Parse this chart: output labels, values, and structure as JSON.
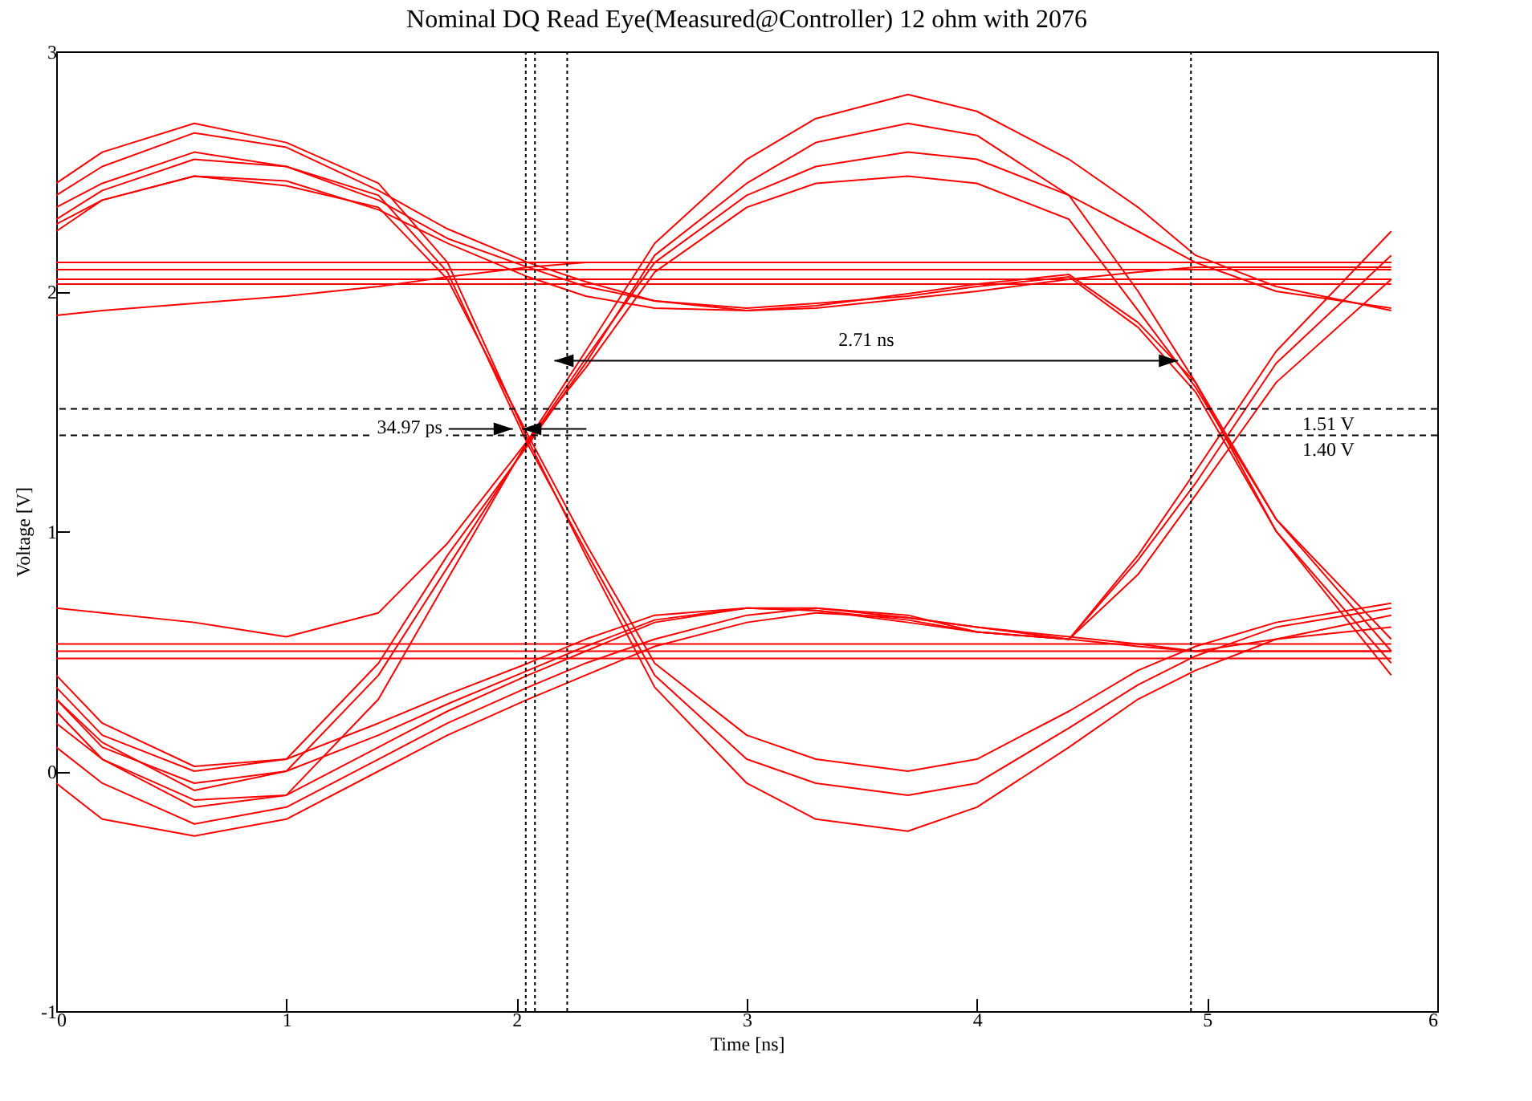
{
  "chart_data": {
    "type": "line",
    "title": "Nominal DQ Read Eye(Measured@Controller) 12 ohm with 2076",
    "xlabel": "Time [ns]",
    "ylabel": "Voltage [V]",
    "xlim": [
      0,
      6
    ],
    "xticks": [
      0,
      1,
      2,
      3,
      4,
      5,
      6
    ],
    "ylim": [
      -1,
      3
    ],
    "yticks": [
      -1,
      0,
      1,
      2,
      3
    ],
    "grid": false,
    "x": [
      0,
      0.2,
      0.6,
      1.0,
      1.4,
      1.7,
      2.05,
      2.3,
      2.6,
      3.0,
      3.3,
      3.7,
      4.0,
      4.4,
      4.7,
      4.95,
      5.3,
      5.8
    ],
    "series": [
      {
        "color": "#ff0000",
        "values": [
          2.45,
          2.58,
          2.7,
          2.62,
          2.45,
          2.12,
          1.38,
          0.9,
          0.35,
          -0.05,
          -0.2,
          -0.25,
          -0.15,
          0.1,
          0.3,
          0.42,
          0.55,
          0.65
        ]
      },
      {
        "color": "#ff0000",
        "values": [
          2.35,
          2.45,
          2.58,
          2.52,
          2.4,
          2.08,
          1.36,
          0.92,
          0.4,
          0.05,
          -0.05,
          -0.1,
          -0.05,
          0.18,
          0.36,
          0.48,
          0.6,
          0.68
        ]
      },
      {
        "color": "#ff0000",
        "values": [
          2.28,
          2.38,
          2.48,
          2.44,
          2.35,
          2.05,
          1.4,
          0.95,
          0.45,
          0.15,
          0.05,
          0.0,
          0.05,
          0.25,
          0.42,
          0.52,
          0.62,
          0.7
        ]
      },
      {
        "color": "#ff0000",
        "values": [
          2.4,
          2.52,
          2.66,
          2.6,
          2.42,
          2.26,
          2.12,
          2.04,
          1.96,
          1.92,
          1.93,
          1.97,
          2.0,
          2.05,
          2.08,
          2.1,
          2.1,
          2.1
        ]
      },
      {
        "color": "#ff0000",
        "values": [
          2.3,
          2.42,
          2.55,
          2.52,
          2.38,
          2.22,
          2.1,
          2.02,
          1.96,
          1.93,
          1.95,
          1.98,
          2.02,
          2.06,
          1.85,
          1.58,
          1.0,
          0.4
        ]
      },
      {
        "color": "#ff0000",
        "values": [
          2.25,
          2.38,
          2.48,
          2.46,
          2.34,
          2.2,
          2.06,
          1.98,
          1.93,
          1.92,
          1.94,
          1.99,
          2.03,
          2.07,
          1.87,
          1.62,
          1.05,
          0.55
        ]
      },
      {
        "color": "#ff0000",
        "values": [
          2.12,
          2.12,
          2.12,
          2.12,
          2.12,
          2.12,
          2.12,
          2.12,
          2.12,
          2.12,
          2.12,
          2.12,
          2.12,
          2.12,
          2.12,
          2.12,
          2.12,
          2.12
        ]
      },
      {
        "color": "#ff0000",
        "values": [
          2.09,
          2.09,
          2.09,
          2.09,
          2.09,
          2.09,
          2.09,
          2.09,
          2.09,
          2.09,
          2.09,
          2.09,
          2.09,
          2.09,
          2.09,
          2.09,
          2.09,
          2.09
        ]
      },
      {
        "color": "#ff0000",
        "values": [
          2.05,
          2.05,
          2.05,
          2.05,
          2.05,
          2.05,
          2.05,
          2.05,
          2.05,
          2.05,
          2.05,
          2.05,
          2.05,
          2.05,
          2.05,
          2.05,
          2.05,
          2.05
        ]
      },
      {
        "color": "#ff0000",
        "values": [
          2.03,
          2.03,
          2.03,
          2.03,
          2.03,
          2.03,
          2.03,
          2.03,
          2.03,
          2.03,
          2.03,
          2.03,
          2.03,
          2.03,
          2.03,
          2.03,
          2.03,
          2.03
        ]
      },
      {
        "color": "#ff0000",
        "values": [
          1.9,
          1.92,
          1.95,
          1.98,
          2.02,
          2.06,
          2.1,
          2.12,
          2.12,
          2.12,
          2.12,
          2.12,
          2.12,
          2.12,
          2.12,
          2.12,
          2.12,
          2.12
        ]
      },
      {
        "color": "#ff0000",
        "values": [
          0.53,
          0.53,
          0.53,
          0.53,
          0.53,
          0.53,
          0.53,
          0.53,
          0.53,
          0.53,
          0.53,
          0.53,
          0.53,
          0.53,
          0.53,
          0.53,
          0.53,
          0.53
        ]
      },
      {
        "color": "#ff0000",
        "values": [
          0.5,
          0.5,
          0.5,
          0.5,
          0.5,
          0.5,
          0.5,
          0.5,
          0.5,
          0.5,
          0.5,
          0.5,
          0.5,
          0.5,
          0.5,
          0.5,
          0.5,
          0.5
        ]
      },
      {
        "color": "#ff0000",
        "values": [
          0.47,
          0.47,
          0.47,
          0.47,
          0.47,
          0.47,
          0.47,
          0.47,
          0.47,
          0.47,
          0.47,
          0.47,
          0.47,
          0.47,
          0.47,
          0.47,
          0.47,
          0.47
        ]
      },
      {
        "color": "#ff0000",
        "values": [
          0.68,
          0.66,
          0.62,
          0.56,
          0.66,
          0.95,
          1.38,
          1.75,
          2.2,
          2.55,
          2.72,
          2.82,
          2.75,
          2.55,
          2.35,
          2.15,
          2.02,
          1.92
        ]
      },
      {
        "color": "#ff0000",
        "values": [
          0.4,
          0.2,
          0.02,
          0.05,
          0.45,
          0.9,
          1.36,
          1.7,
          2.15,
          2.45,
          2.62,
          2.7,
          2.65,
          2.4,
          2.0,
          1.62,
          1.0,
          0.45
        ]
      },
      {
        "color": "#ff0000",
        "values": [
          0.3,
          0.12,
          -0.08,
          0.0,
          0.4,
          0.85,
          1.37,
          1.72,
          2.12,
          2.4,
          2.52,
          2.58,
          2.55,
          2.4,
          2.25,
          2.12,
          2.0,
          1.93
        ]
      },
      {
        "color": "#ff0000",
        "values": [
          0.25,
          0.05,
          -0.15,
          -0.1,
          0.3,
          0.8,
          1.38,
          1.68,
          2.08,
          2.35,
          2.45,
          2.48,
          2.45,
          2.3,
          1.92,
          1.6,
          1.05,
          0.5
        ]
      },
      {
        "color": "#ff0000",
        "values": [
          0.35,
          0.15,
          0.0,
          0.05,
          0.2,
          0.32,
          0.45,
          0.55,
          0.65,
          0.68,
          0.67,
          0.62,
          0.58,
          0.55,
          0.52,
          0.5,
          0.5,
          0.5
        ]
      },
      {
        "color": "#ff0000",
        "values": [
          0.1,
          -0.05,
          -0.22,
          -0.15,
          0.05,
          0.2,
          0.35,
          0.45,
          0.55,
          0.65,
          0.68,
          0.65,
          0.58,
          0.55,
          0.9,
          1.25,
          1.75,
          2.25
        ]
      },
      {
        "color": "#ff0000",
        "values": [
          0.2,
          0.05,
          -0.12,
          -0.1,
          0.1,
          0.25,
          0.4,
          0.5,
          0.62,
          0.68,
          0.67,
          0.63,
          0.58,
          0.55,
          0.88,
          1.2,
          1.7,
          2.15
        ]
      },
      {
        "color": "#ff0000",
        "values": [
          0.3,
          0.1,
          -0.05,
          0.0,
          0.15,
          0.28,
          0.42,
          0.52,
          0.63,
          0.68,
          0.68,
          0.64,
          0.6,
          0.55,
          0.82,
          1.15,
          1.62,
          2.05
        ]
      },
      {
        "color": "#ff0000",
        "values": [
          -0.05,
          -0.2,
          -0.27,
          -0.2,
          0.0,
          0.15,
          0.3,
          0.4,
          0.52,
          0.62,
          0.66,
          0.64,
          0.6,
          0.56,
          0.53,
          0.5,
          0.55,
          0.6
        ]
      }
    ],
    "ref_lines": [
      {
        "axis": "x",
        "value": 2.04,
        "color": "#000000",
        "line_style": "dotted"
      },
      {
        "axis": "x",
        "value": 2.08,
        "color": "#000000",
        "line_style": "dotted"
      },
      {
        "axis": "x",
        "value": 2.22,
        "color": "#000000",
        "line_style": "dotted"
      },
      {
        "axis": "x",
        "value": 4.93,
        "color": "#000000",
        "line_style": "dotted"
      },
      {
        "axis": "y",
        "value": 1.51,
        "label": "1.51 V",
        "color": "#000000",
        "line_style": "dashed"
      },
      {
        "axis": "y",
        "value": 1.4,
        "label": "1.40 V",
        "color": "#000000",
        "line_style": "dashed"
      }
    ],
    "annotations": [
      "2.71 ns",
      "34.97 ps"
    ]
  }
}
